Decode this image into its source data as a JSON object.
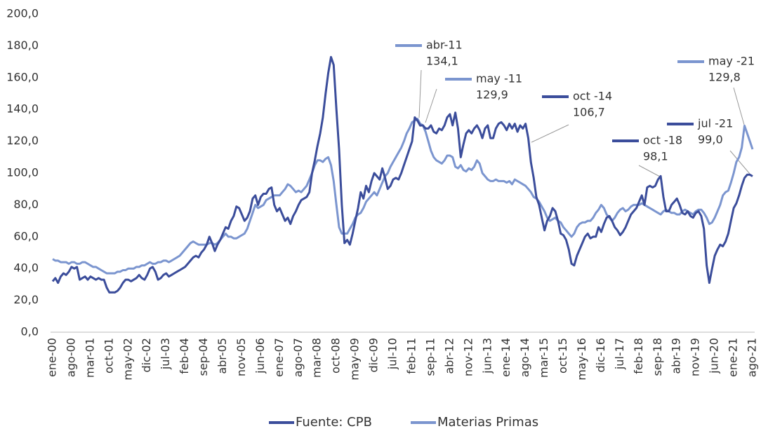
{
  "chart_data": {
    "type": "line",
    "categories": [
      "ene-00",
      null,
      null,
      null,
      null,
      null,
      null,
      "ago-00",
      null,
      null,
      null,
      null,
      null,
      null,
      "mar-01",
      null,
      null,
      null,
      null,
      null,
      null,
      "oct-01",
      null,
      null,
      null,
      null,
      null,
      null,
      "may-02",
      null,
      null,
      null,
      null,
      null,
      null,
      "dic-02",
      null,
      null,
      null,
      null,
      null,
      null,
      "jul-03",
      null,
      null,
      null,
      null,
      null,
      null,
      "feb-04",
      null,
      null,
      null,
      null,
      null,
      null,
      "sep-04",
      null,
      null,
      null,
      null,
      null,
      null,
      "abr-05",
      null,
      null,
      null,
      null,
      null,
      null,
      "nov-05",
      null,
      null,
      null,
      null,
      null,
      null,
      "jun-06",
      null,
      null,
      null,
      null,
      null,
      null,
      "ene-07",
      null,
      null,
      null,
      null,
      null,
      null,
      "ago-07",
      null,
      null,
      null,
      null,
      null,
      null,
      "mar-08",
      null,
      null,
      null,
      null,
      null,
      null,
      "oct-08",
      null,
      null,
      null,
      null,
      null,
      null,
      "may-09",
      null,
      null,
      null,
      null,
      null,
      null,
      "dic-09",
      null,
      null,
      null,
      null,
      null,
      null,
      "jul-10",
      null,
      null,
      null,
      null,
      null,
      null,
      "feb-11",
      null,
      null,
      null,
      null,
      null,
      null,
      "sep-11",
      null,
      null,
      null,
      null,
      null,
      null,
      "abr-12",
      null,
      null,
      null,
      null,
      null,
      null,
      "nov-12",
      null,
      null,
      null,
      null,
      null,
      null,
      "jun-13",
      null,
      null,
      null,
      null,
      null,
      null,
      "ene-14",
      null,
      null,
      null,
      null,
      null,
      null,
      "ago-14",
      null,
      null,
      null,
      null,
      null,
      null,
      "mar-15",
      null,
      null,
      null,
      null,
      null,
      null,
      "oct-15",
      null,
      null,
      null,
      null,
      null,
      null,
      "may-16",
      null,
      null,
      null,
      null,
      null,
      null,
      "dic-16",
      null,
      null,
      null,
      null,
      null,
      null,
      "jul-17",
      null,
      null,
      null,
      null,
      null,
      null,
      "feb-18",
      null,
      null,
      null,
      null,
      null,
      null,
      "sep-18",
      null,
      null,
      null,
      null,
      null,
      null,
      "abr-19",
      null,
      null,
      null,
      null,
      null,
      null,
      "nov-19",
      null,
      null,
      null,
      null,
      null,
      null,
      "jun-20",
      null,
      null,
      null,
      null,
      null,
      null,
      "ene-21",
      null,
      null,
      null,
      null,
      null,
      null,
      "ago-21"
    ],
    "series": [
      {
        "name": "Fuente: CPB",
        "color": "#3b4d9b",
        "values": [
          32,
          34,
          31,
          35,
          37,
          36,
          38,
          41,
          40,
          41,
          33,
          34,
          35,
          33,
          35,
          34,
          33,
          34,
          33,
          33,
          28,
          25,
          25,
          25,
          26,
          28,
          31,
          33,
          33,
          32,
          33,
          34,
          36,
          34,
          33,
          36,
          40,
          41,
          38,
          33,
          34,
          36,
          37,
          35,
          36,
          37,
          38,
          39,
          40,
          41,
          43,
          45,
          47,
          48,
          47,
          50,
          52,
          55,
          60,
          56,
          51,
          55,
          58,
          62,
          66,
          65,
          70,
          73,
          79,
          78,
          74,
          70,
          72,
          76,
          84,
          86,
          80,
          85,
          87,
          87,
          90,
          91,
          80,
          76,
          78,
          74,
          70,
          72,
          68,
          73,
          76,
          80,
          83,
          84,
          85,
          88,
          100,
          108,
          117,
          125,
          135,
          150,
          163,
          173,
          168,
          140,
          115,
          80,
          56,
          58,
          55,
          62,
          70,
          78,
          88,
          84,
          92,
          88,
          95,
          100,
          98,
          96,
          103,
          97,
          90,
          92,
          96,
          97,
          96,
          100,
          105,
          110,
          115,
          120,
          135,
          133,
          129.9,
          130,
          128,
          128,
          130,
          126,
          125,
          128,
          127,
          130,
          135,
          137,
          130,
          138,
          128,
          110,
          118,
          125,
          127,
          125,
          128,
          130,
          127,
          122,
          128,
          130,
          122,
          122,
          128,
          131,
          132,
          130,
          127,
          131,
          128,
          131,
          126,
          130,
          128,
          131,
          122,
          106.7,
          97,
          85,
          80,
          72,
          64,
          70,
          73,
          78,
          76,
          70,
          62,
          61,
          58,
          52,
          43,
          42,
          48,
          52,
          56,
          60,
          62,
          59,
          60,
          60,
          66,
          63,
          68,
          72,
          73,
          70,
          66,
          64,
          61,
          63,
          66,
          70,
          74,
          76,
          78,
          82,
          86,
          80,
          91,
          92,
          91,
          92,
          96,
          98.1,
          85,
          76,
          76,
          80,
          82,
          84,
          80,
          75,
          74,
          76,
          73,
          72,
          75,
          76,
          73,
          65,
          42,
          31,
          40,
          48,
          52,
          55,
          54,
          57,
          62,
          70,
          78,
          81,
          86,
          92,
          97,
          99,
          99.0,
          98
        ]
      },
      {
        "name": "Materias Primas",
        "color": "#7b95cf",
        "values": [
          46,
          45,
          45,
          44,
          44,
          44,
          43,
          44,
          44,
          43,
          43,
          44,
          44,
          43,
          42,
          41,
          41,
          40,
          39,
          38,
          37,
          37,
          37,
          37,
          38,
          38,
          39,
          39,
          40,
          40,
          40,
          41,
          41,
          42,
          42,
          43,
          44,
          43,
          43,
          44,
          44,
          45,
          45,
          44,
          45,
          46,
          47,
          48,
          50,
          52,
          54,
          56,
          57,
          56,
          55,
          55,
          55,
          55,
          56,
          56,
          55,
          56,
          58,
          60,
          62,
          60,
          60,
          59,
          59,
          60,
          61,
          62,
          65,
          70,
          75,
          80,
          78,
          79,
          80,
          83,
          84,
          85,
          86,
          86,
          86,
          88,
          90,
          93,
          92,
          90,
          88,
          89,
          88,
          90,
          92,
          96,
          100,
          105,
          108,
          108,
          107,
          109,
          110,
          105,
          95,
          80,
          66,
          62,
          62,
          62,
          65,
          68,
          72,
          74,
          75,
          78,
          82,
          84,
          86,
          88,
          86,
          90,
          94,
          98,
          100,
          104,
          107,
          110,
          113,
          116,
          120,
          125,
          128,
          132,
          133,
          134.1,
          131,
          130,
          126,
          120,
          114,
          110,
          108,
          107,
          106,
          108,
          111,
          111,
          110,
          104,
          103,
          105,
          102,
          101,
          103,
          102,
          104,
          108,
          106,
          100,
          98,
          96,
          95,
          95,
          96,
          95,
          95,
          95,
          94,
          95,
          93,
          96,
          95,
          94,
          93,
          92,
          90,
          88,
          85,
          84,
          82,
          79,
          76,
          72,
          70,
          71,
          72,
          70,
          69,
          66,
          64,
          62,
          60,
          62,
          66,
          68,
          69,
          69,
          70,
          70,
          72,
          75,
          77,
          80,
          78,
          74,
          72,
          70,
          72,
          75,
          77,
          78,
          76,
          77,
          79,
          80,
          80,
          80,
          81,
          80,
          79,
          78,
          77,
          76,
          75,
          74,
          76,
          77,
          76,
          75,
          75,
          74,
          74,
          76,
          77,
          76,
          75,
          74,
          76,
          77,
          77,
          75,
          72,
          68,
          69,
          72,
          76,
          80,
          86,
          88,
          89,
          94,
          100,
          107,
          110,
          116,
          129.8,
          125,
          120,
          115
        ]
      }
    ],
    "ylim": [
      0,
      200
    ],
    "yticks": [
      {
        "value": 0,
        "label": "0,0"
      },
      {
        "value": 20,
        "label": "20,0"
      },
      {
        "value": 40,
        "label": "40,0"
      },
      {
        "value": 60,
        "label": "60,0"
      },
      {
        "value": 80,
        "label": "80,0"
      },
      {
        "value": 100,
        "label": "100,0"
      },
      {
        "value": 120,
        "label": "120,0"
      },
      {
        "value": 140,
        "label": "140,0"
      },
      {
        "value": 160,
        "label": "160,0"
      },
      {
        "value": 180,
        "label": "180,0"
      },
      {
        "value": 200,
        "label": "200,0"
      }
    ],
    "annotations": [
      {
        "label": "abr-11",
        "text": "134,1",
        "color": "#7b95cf"
      },
      {
        "label": "may -11",
        "text": "129,9",
        "color": "#7b95cf"
      },
      {
        "label": "oct -14",
        "text": "106,7",
        "color": "#3b4d9b"
      },
      {
        "label": "oct -18",
        "text": "98,1",
        "color": "#3b4d9b"
      },
      {
        "label": "jul -21",
        "text": "99,0",
        "color": "#3b4d9b"
      },
      {
        "label": "may -21",
        "text": "129,8",
        "color": "#7b95cf"
      }
    ],
    "legend": "bottom"
  }
}
